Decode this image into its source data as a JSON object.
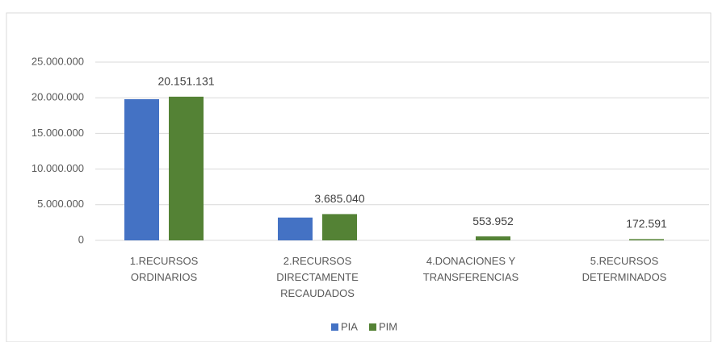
{
  "chart_data": {
    "type": "bar",
    "categories": [
      "1.RECURSOS ORDINARIOS",
      "2.RECURSOS DIRECTAMENTE RECAUDADOS",
      "4.DONACIONES Y TRANSFERENCIAS",
      "5.RECURSOS DETERMINADOS"
    ],
    "series": [
      {
        "name": "PIA",
        "color": "#4472c4",
        "values": [
          19800000,
          3200000,
          0,
          0
        ]
      },
      {
        "name": "PIM",
        "color": "#548235",
        "values": [
          20151131,
          3685040,
          553952,
          172591
        ],
        "value_labels": [
          "20.151.131",
          "3.685.040",
          "553.952",
          "172.591"
        ]
      }
    ],
    "ylim": [
      0,
      25000000
    ],
    "yticks": [
      0,
      {
        "value": 5000000,
        "label": "5.000.000"
      },
      {
        "value": 10000000,
        "label": "10.000.000"
      },
      {
        "value": 15000000,
        "label": "15.000.000"
      },
      {
        "value": 20000000,
        "label": "20.000.000"
      },
      {
        "value": 25000000,
        "label": "25.000.000"
      }
    ],
    "grid": true,
    "legend": "bottom"
  }
}
